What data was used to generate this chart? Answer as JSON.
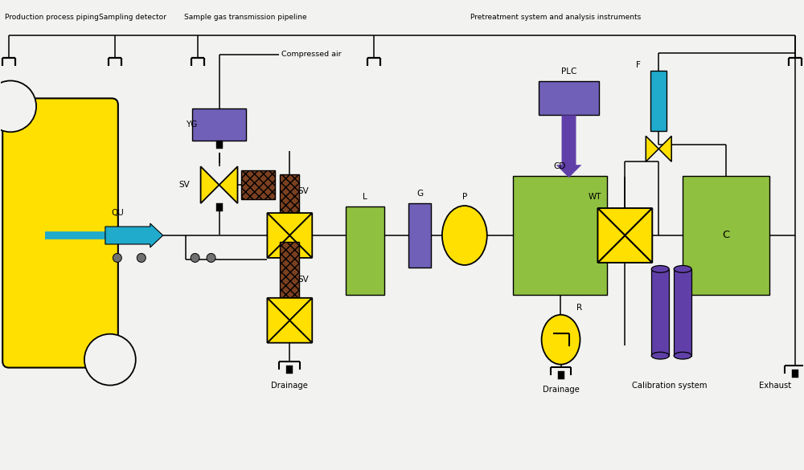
{
  "bg": "#f2f2f0",
  "yellow": "#FFE000",
  "purple": "#7060B8",
  "dark_purple": "#6040A8",
  "green": "#90C040",
  "cyan": "#20AACC",
  "brown": "#7B4020",
  "black": "#111111",
  "top1": "Production process piping",
  "top2": "Sampling detector",
  "top3": "Sample gas transmission pipeline",
  "top4": "Pretreatment system and analysis instruments",
  "lbl_ca": "Compressed air",
  "lbl_YG": "YG",
  "lbl_SV": "SV",
  "lbl_QU": "QU",
  "lbl_G": "G",
  "lbl_P": "P",
  "lbl_CD": "CD",
  "lbl_WT": "WT",
  "lbl_F": "F",
  "lbl_C": "C",
  "lbl_R": "R",
  "lbl_L": "L",
  "lbl_PLC": "PLC",
  "lbl_drain1": "Drainage",
  "lbl_drain2": "Drainage",
  "lbl_cal": "Calibration system",
  "lbl_ex": "Exhaust"
}
